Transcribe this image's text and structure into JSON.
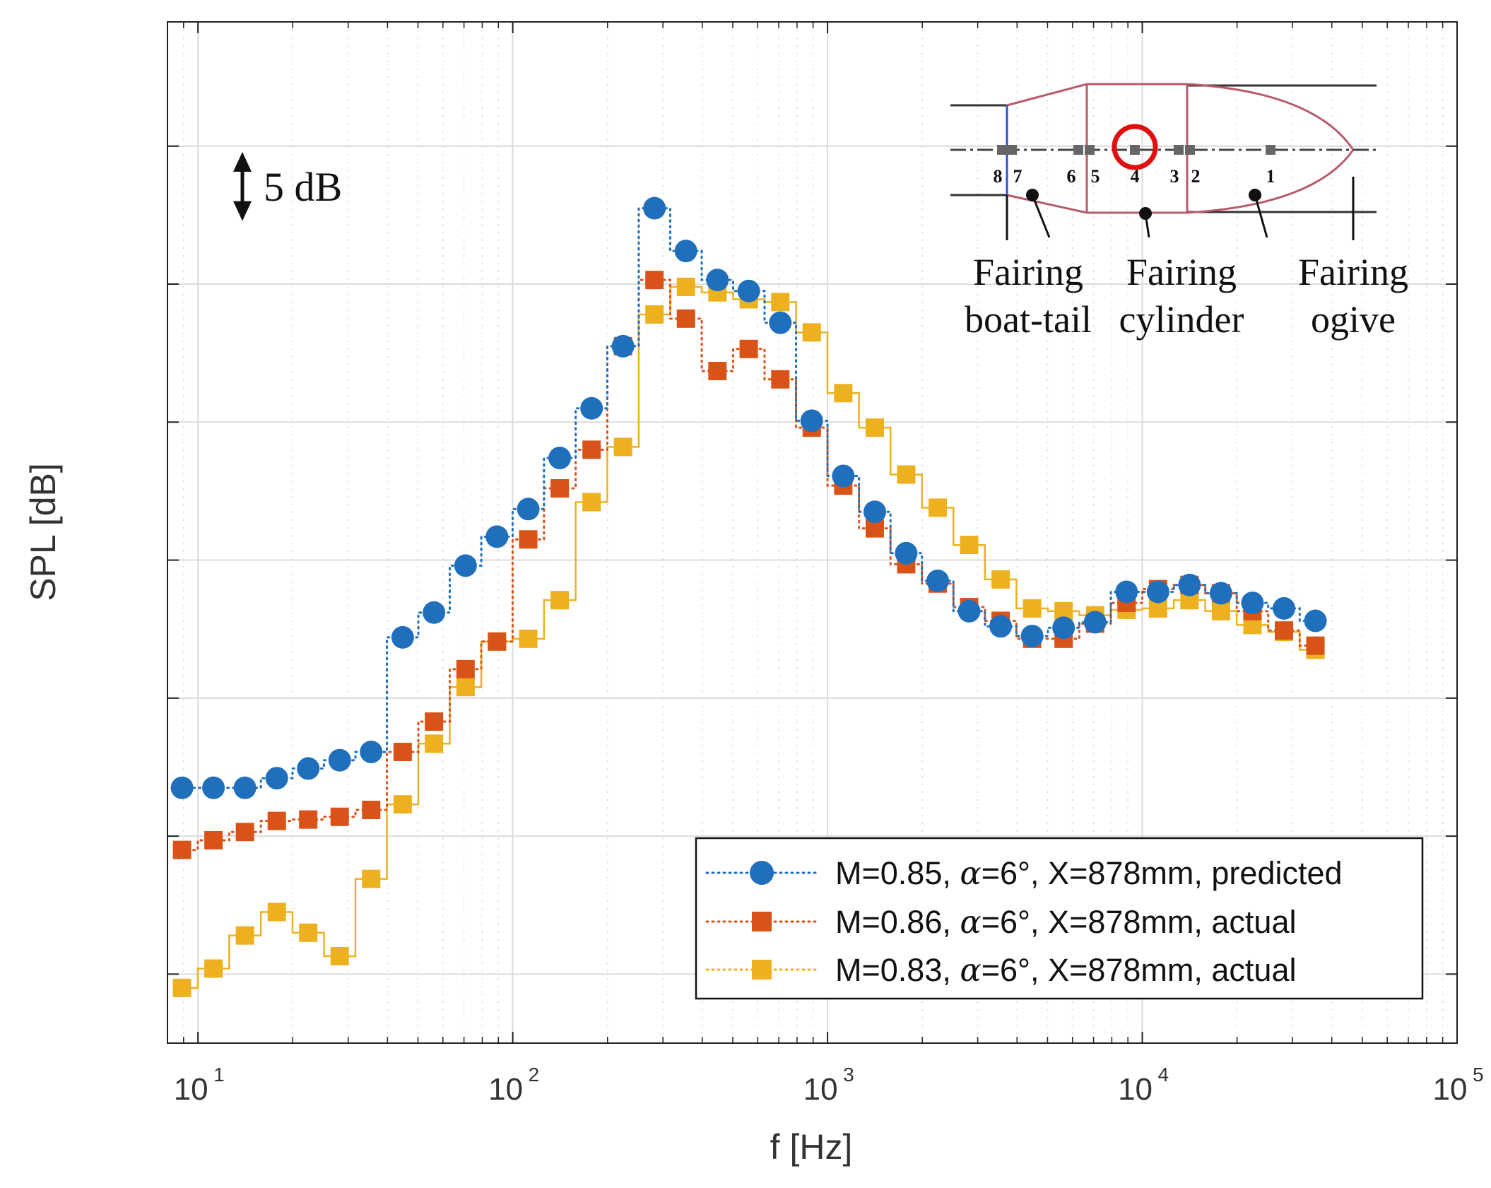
{
  "chart_data": {
    "type": "line",
    "xscale": "log",
    "xlim": [
      8,
      100000
    ],
    "ylim": [
      -5,
      69
    ],
    "xlabel": "f [Hz]",
    "ylabel": "SPL [dB]",
    "x_ticks": [
      {
        "base": "10",
        "exp": "1"
      },
      {
        "base": "10",
        "exp": "2"
      },
      {
        "base": "10",
        "exp": "3"
      },
      {
        "base": "10",
        "exp": "4"
      },
      {
        "base": "10",
        "exp": "5"
      }
    ],
    "grid": true,
    "y_tick_labels_shown": false,
    "scale_bar_label": "5 dB",
    "scale_bar_value": 5,
    "x": [
      8.9,
      11.2,
      14.1,
      17.8,
      22.4,
      28.2,
      35.5,
      44.7,
      56.2,
      70.8,
      89.1,
      112,
      141,
      178,
      224,
      282,
      355,
      447,
      562,
      708,
      891,
      1122,
      1413,
      1778,
      2239,
      2818,
      3548,
      4467,
      5623,
      7079,
      8913,
      11220,
      14125,
      17783,
      22387,
      28184,
      35481
    ],
    "series": [
      {
        "name": "M=0.85, α=6°, X=878mm, predicted",
        "label_prefix": "M=0.85, ",
        "label_alpha": "α",
        "label_suffix": "=6°, X=878mm, predicted",
        "color": "#1f6fbd",
        "marker": "circle",
        "linestyle": "dotted",
        "values": [
          13.5,
          13.5,
          13.5,
          14.2,
          14.9,
          15.5,
          16.1,
          24.4,
          26.2,
          29.6,
          31.7,
          33.7,
          37.4,
          41.0,
          45.5,
          55.5,
          52.4,
          50.3,
          49.5,
          47.2,
          40.1,
          36.1,
          33.5,
          30.5,
          28.5,
          26.3,
          25.2,
          24.5,
          25.1,
          25.5,
          27.7,
          27.7,
          28.2,
          27.6,
          26.9,
          26.5,
          25.6
        ]
      },
      {
        "name": "M=0.86, α=6°, X=878mm, actual",
        "label_prefix": "M=0.86, ",
        "label_alpha": "α",
        "label_suffix": "=6°, X=878mm, actual",
        "color": "#d95319",
        "marker": "square",
        "linestyle": "dotted",
        "values": [
          9.0,
          9.7,
          10.3,
          11.1,
          11.2,
          11.4,
          11.9,
          16.1,
          18.3,
          22.1,
          24.1,
          31.5,
          35.2,
          38.0,
          45.5,
          50.3,
          47.5,
          43.7,
          45.3,
          43.1,
          39.6,
          35.4,
          32.3,
          29.7,
          28.3,
          26.6,
          25.6,
          24.3,
          24.3,
          25.4,
          26.9,
          27.9,
          28.2,
          27.6,
          26.3,
          24.9,
          23.8
        ]
      },
      {
        "name": "M=0.83, α=6°, X=878mm, actual",
        "label_prefix": "M=0.83, ",
        "label_alpha": "α",
        "label_suffix": "=6°, X=878mm, actual",
        "color": "#edb120",
        "marker": "square",
        "linestyle": "solid",
        "values": [
          -1.0,
          0.4,
          2.8,
          4.5,
          3.0,
          1.3,
          6.9,
          12.3,
          16.7,
          20.8,
          24.1,
          24.3,
          27.1,
          34.2,
          38.2,
          47.8,
          49.8,
          49.4,
          48.9,
          48.7,
          46.5,
          42.1,
          39.6,
          36.2,
          33.8,
          31.1,
          28.6,
          26.5,
          26.3,
          26.0,
          26.4,
          26.5,
          27.1,
          26.3,
          25.3,
          24.8,
          23.5
        ]
      }
    ],
    "legend": "bottom-right",
    "inset": {
      "section_numbers": [
        "8",
        "7",
        "6",
        "5",
        "4",
        "3",
        "2",
        "1"
      ],
      "labels": [
        {
          "line1": "Fairing",
          "line2": "boat-tail"
        },
        {
          "line1": "Fairing",
          "line2": "cylinder"
        },
        {
          "line1": "Fairing",
          "line2": "ogive"
        }
      ],
      "highlighted_section": "4"
    }
  }
}
